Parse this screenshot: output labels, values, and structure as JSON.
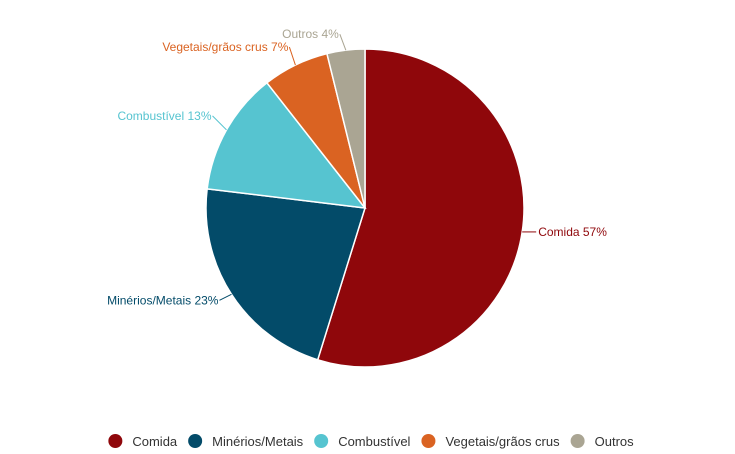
{
  "chart_data": {
    "type": "pie",
    "title": "",
    "legend_position": "bottom",
    "slices": [
      {
        "name": "Comida",
        "value": 57,
        "label": "Comida 57%",
        "color": "#8f070b"
      },
      {
        "name": "Minérios/Metais",
        "value": 23,
        "label": "Minérios/Metais 23%",
        "color": "#034b69"
      },
      {
        "name": "Combustível",
        "value": 13,
        "label": "Combustível 13%",
        "color": "#56c4d0"
      },
      {
        "name": "Vegetais/grãos crus",
        "value": 7,
        "label": "Vegetais/grãos crus 7%",
        "color": "#da6322"
      },
      {
        "name": "Outros",
        "value": 4,
        "label": "Outros 4%",
        "color": "#aaa593"
      }
    ]
  }
}
